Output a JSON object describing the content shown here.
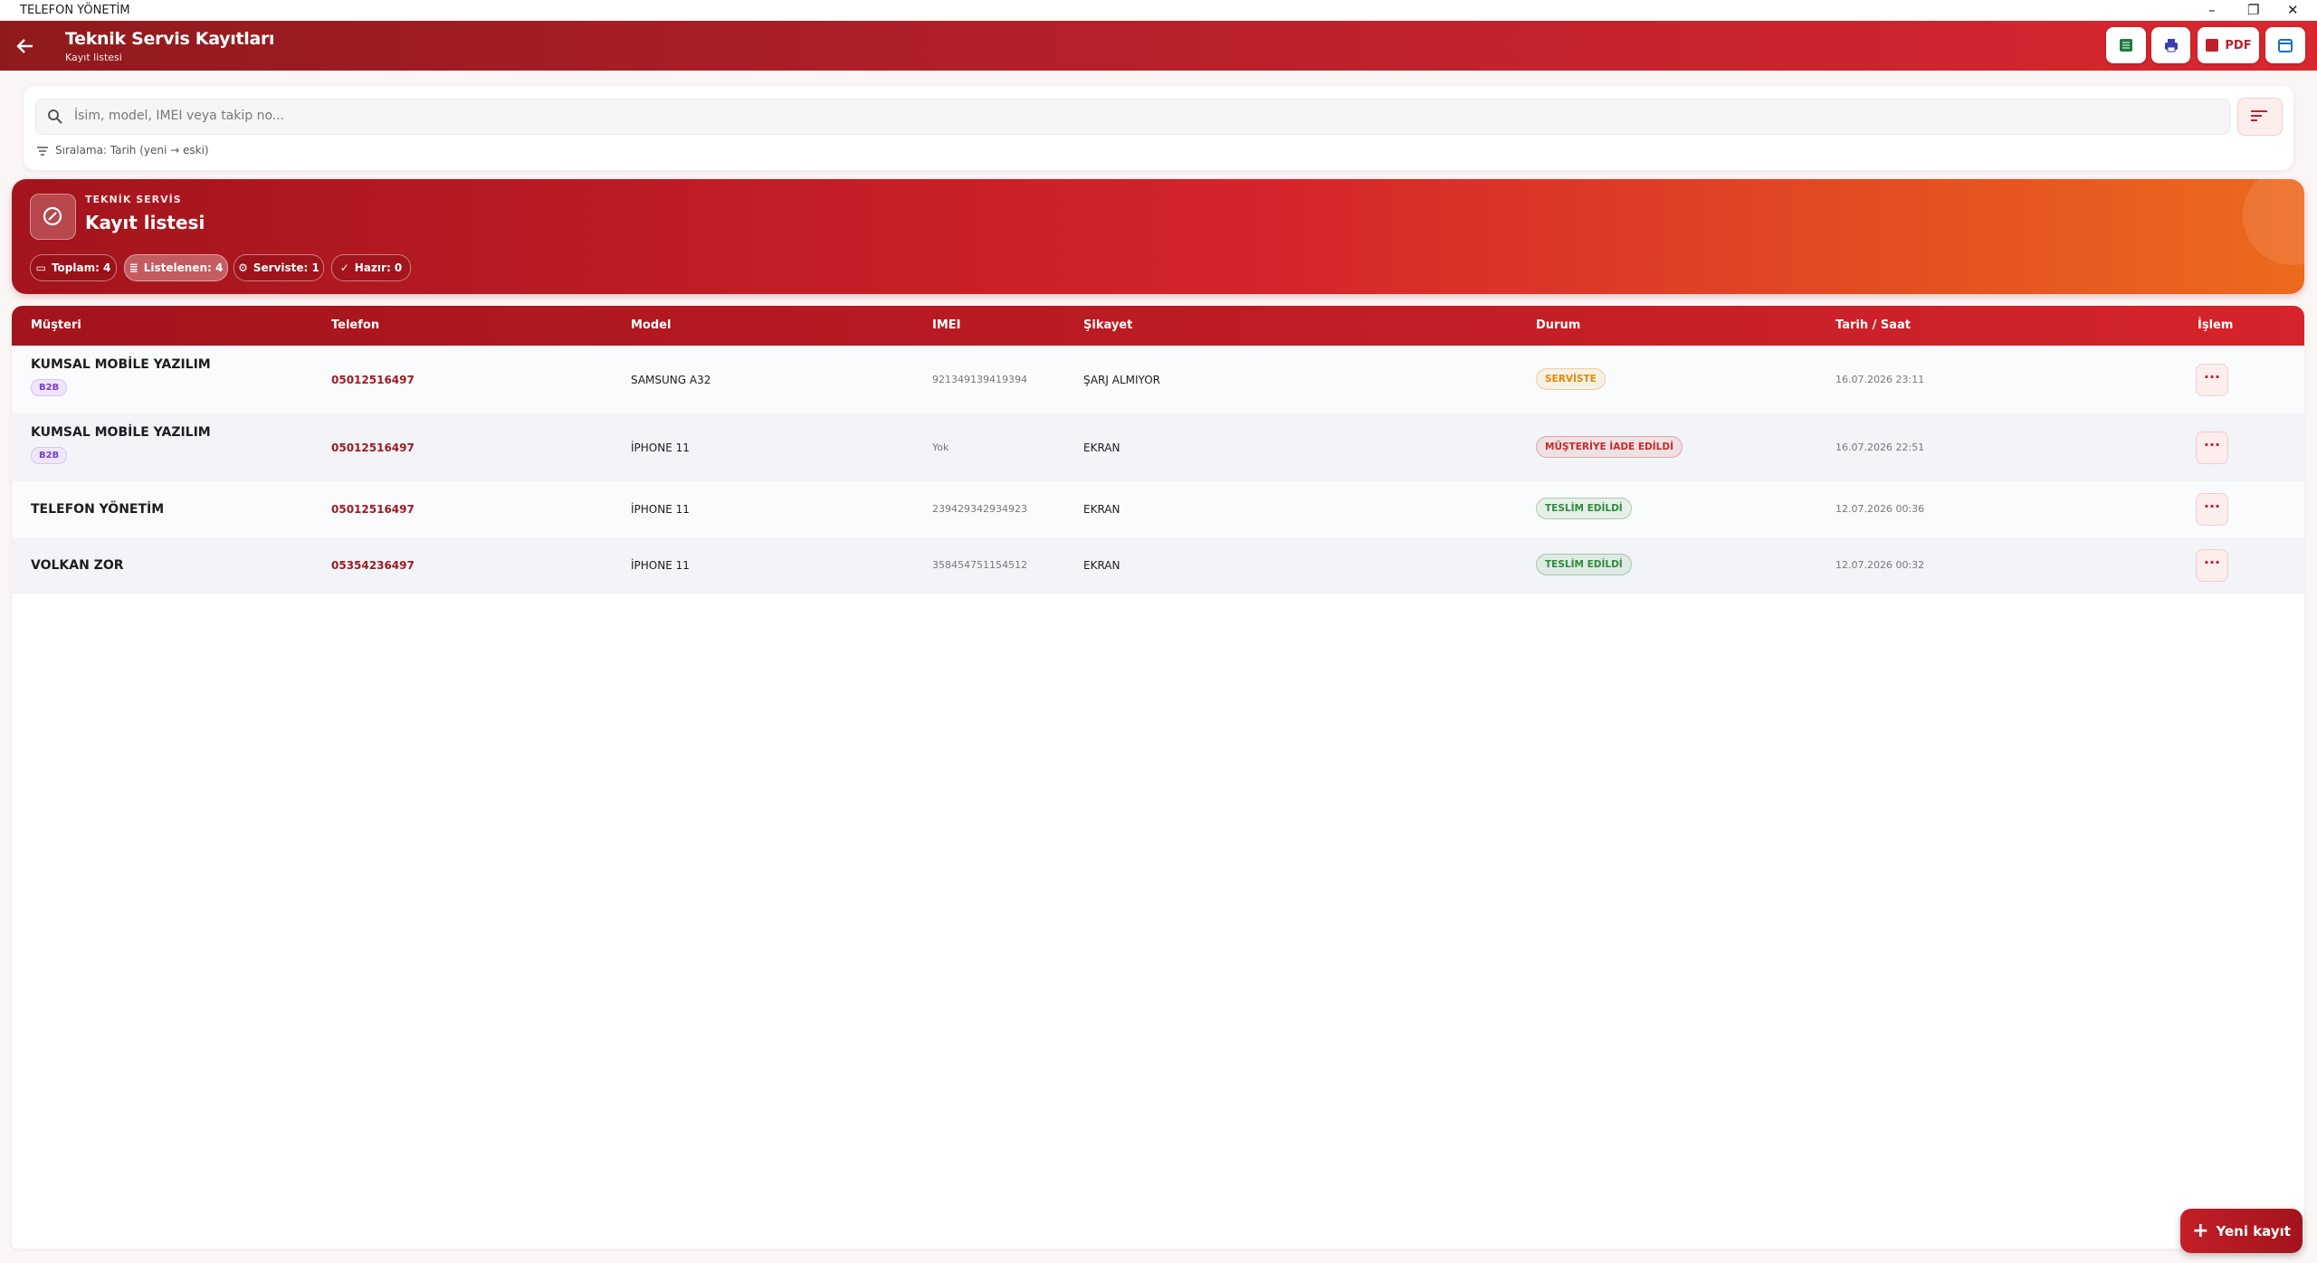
{
  "window": {
    "title": "TELEFON YÖNETİM"
  },
  "header": {
    "title": "Teknik Servis Kayıtları",
    "subtitle": "Kayıt listesi",
    "pdf_label": "PDF"
  },
  "search": {
    "placeholder": "İsim, model, IMEI veya takip no...",
    "sort_label": "Sıralama: Tarih (yeni → eski)"
  },
  "banner": {
    "kicker": "TEKNİK SERVİS",
    "title": "Kayıt listesi",
    "chips": [
      "Toplam: 4",
      "Listelenen: 4",
      "Serviste: 1",
      "Hazır: 0"
    ]
  },
  "table": {
    "columns": [
      "Müşteri",
      "Telefon",
      "Model",
      "IMEI",
      "Şikayet",
      "Durum",
      "Tarih / Saat",
      "İşlem"
    ],
    "rows": [
      {
        "customer": "KUMSAL MOBİLE YAZILIM",
        "badge": "B2B",
        "phone": "05012516497",
        "model": "SAMSUNG A32",
        "imei": "921349139419394",
        "complaint": "ŞARJ ALMIYOR",
        "status": "SERVİSTE",
        "status_color": "#e08a00",
        "datetime": "16.07.2026 23:11"
      },
      {
        "customer": "KUMSAL MOBİLE YAZILIM",
        "badge": "B2B",
        "phone": "05012516497",
        "model": "İPHONE 11",
        "imei": "Yok",
        "complaint": "EKRAN",
        "status": "MÜŞTERİYE İADE EDİLDİ",
        "status_color": "#c62a2a",
        "datetime": "16.07.2026 22:51"
      },
      {
        "customer": "TELEFON YÖNETİM",
        "phone": "05012516497",
        "model": "İPHONE 11",
        "imei": "239429342934923",
        "complaint": "EKRAN",
        "status": "TESLİM EDİLDİ",
        "status_color": "#2e8b3a",
        "datetime": "12.07.2026 00:36"
      },
      {
        "customer": "VOLKAN ZOR",
        "phone": "05354236497",
        "model": "İPHONE 11",
        "imei": "358454751154512",
        "complaint": "EKRAN",
        "status": "TESLİM EDİLDİ",
        "status_color": "#2e8b3a",
        "datetime": "12.07.2026 00:32"
      }
    ]
  },
  "fab": {
    "label": "Yeni kayıt"
  }
}
